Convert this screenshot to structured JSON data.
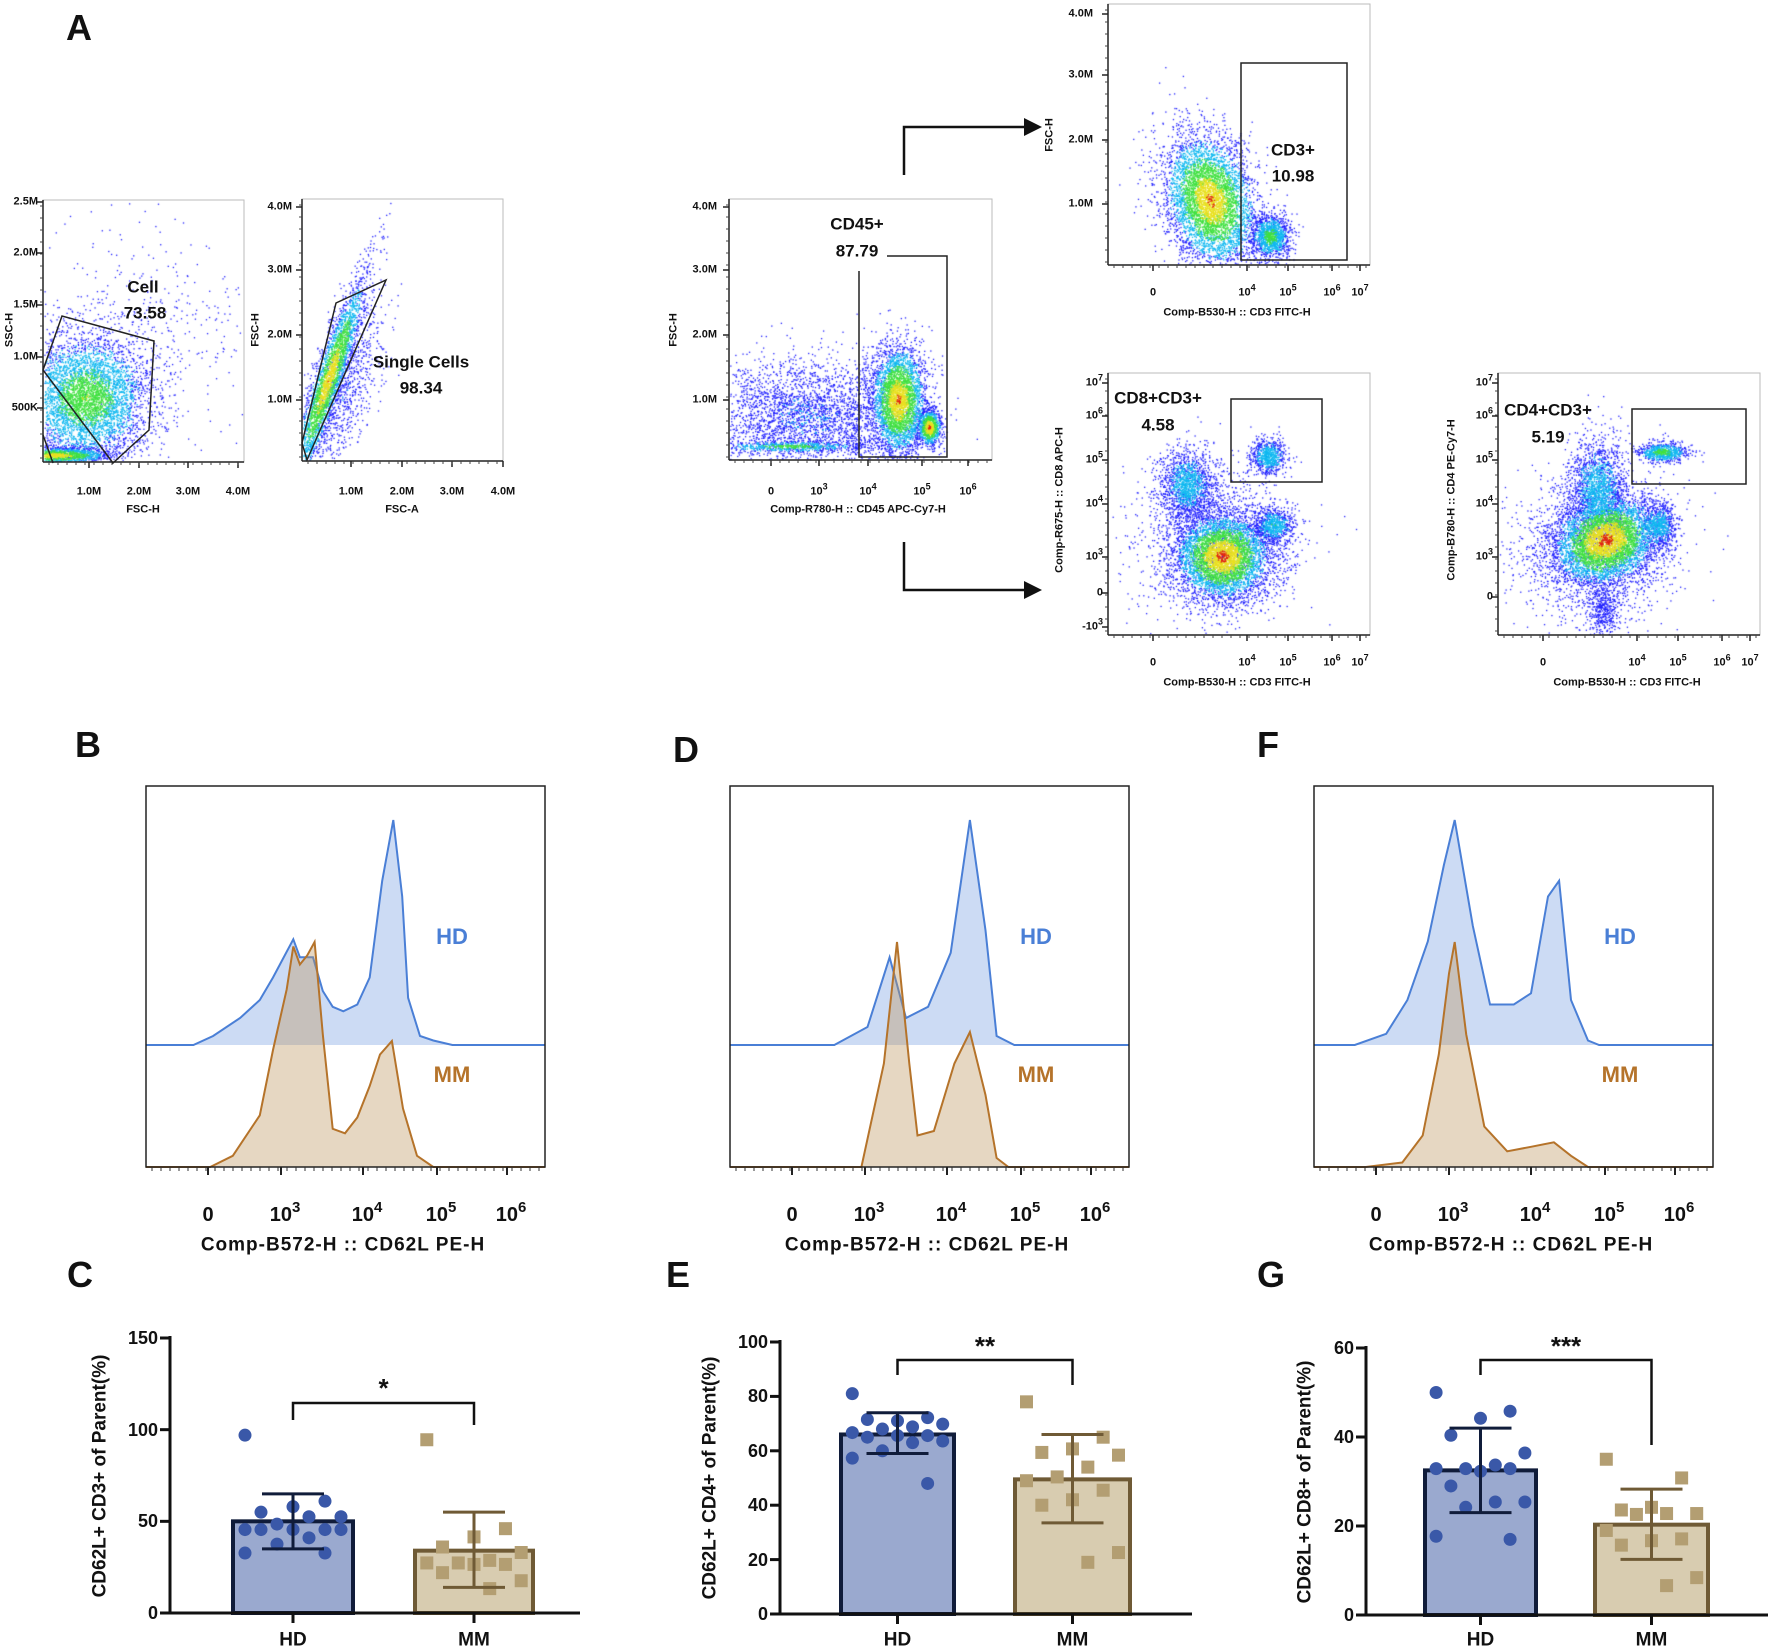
{
  "panel_labels": {
    "A": "A",
    "B": "B",
    "C": "C",
    "D": "D",
    "E": "E",
    "F": "F",
    "G": "G"
  },
  "colors": {
    "hd": "#4a7fd6",
    "mm": "#b5732a",
    "hd_bar": "#9aa9cf",
    "mm_bar": "#d8ccb0",
    "hd_dot": "#3a58a8",
    "mm_dot": "#b39e72"
  },
  "chart_data": [
    {
      "panel": "A",
      "type": "scatter",
      "xlabel": "FSC-H",
      "ylabel": "SSC-H",
      "xticks": [
        {
          "base": "1.0M",
          "exp": ""
        },
        {
          "base": "2.0M",
          "exp": ""
        },
        {
          "base": "3.0M",
          "exp": ""
        },
        {
          "base": "4.0M",
          "exp": ""
        }
      ],
      "yticks": [
        {
          "base": "2.5M",
          "exp": ""
        },
        {
          "base": "2.0M",
          "exp": ""
        },
        {
          "base": "1.5M",
          "exp": ""
        },
        {
          "base": "1.0M",
          "exp": ""
        },
        {
          "base": "500K",
          "exp": ""
        }
      ],
      "gate": {
        "name": "Cell",
        "value": "73.58"
      }
    },
    {
      "panel": "A",
      "type": "scatter",
      "xlabel": "FSC-A",
      "ylabel": "FSC-H",
      "xticks": [
        {
          "base": "1.0M",
          "exp": ""
        },
        {
          "base": "2.0M",
          "exp": ""
        },
        {
          "base": "3.0M",
          "exp": ""
        },
        {
          "base": "4.0M",
          "exp": ""
        }
      ],
      "yticks": [
        {
          "base": "4.0M",
          "exp": ""
        },
        {
          "base": "3.0M",
          "exp": ""
        },
        {
          "base": "2.0M",
          "exp": ""
        },
        {
          "base": "1.0M",
          "exp": ""
        }
      ],
      "gate": {
        "name": "Single Cells",
        "value": "98.34"
      }
    },
    {
      "panel": "A",
      "type": "scatter",
      "xlabel": "Comp-R780-H :: CD45 APC-Cy7-H",
      "ylabel": "FSC-H",
      "xticks": [
        {
          "base": "0",
          "exp": ""
        },
        {
          "base": "10",
          "exp": "3"
        },
        {
          "base": "10",
          "exp": "4"
        },
        {
          "base": "10",
          "exp": "5"
        },
        {
          "base": "10",
          "exp": "6"
        }
      ],
      "yticks": [
        {
          "base": "4.0M",
          "exp": ""
        },
        {
          "base": "3.0M",
          "exp": ""
        },
        {
          "base": "2.0M",
          "exp": ""
        },
        {
          "base": "1.0M",
          "exp": ""
        }
      ],
      "gate": {
        "name": "CD45+",
        "value": "87.79"
      }
    },
    {
      "panel": "A",
      "type": "scatter",
      "xlabel": "Comp-B530-H :: CD3 FITC-H",
      "ylabel": "FSC-H",
      "xticks": [
        {
          "base": "0",
          "exp": ""
        },
        {
          "base": "10",
          "exp": "4"
        },
        {
          "base": "10",
          "exp": "5"
        },
        {
          "base": "10",
          "exp": "6"
        },
        {
          "base": "10",
          "exp": "7"
        }
      ],
      "yticks": [
        {
          "base": "4.0M",
          "exp": ""
        },
        {
          "base": "3.0M",
          "exp": ""
        },
        {
          "base": "2.0M",
          "exp": ""
        },
        {
          "base": "1.0M",
          "exp": ""
        }
      ],
      "gate": {
        "name": "CD3+",
        "value": "10.98"
      }
    },
    {
      "panel": "A",
      "type": "scatter",
      "xlabel": "Comp-B530-H :: CD3 FITC-H",
      "ylabel": "Comp-R675-H :: CD8 APC-H",
      "xticks": [
        {
          "base": "0",
          "exp": ""
        },
        {
          "base": "10",
          "exp": "4"
        },
        {
          "base": "10",
          "exp": "5"
        },
        {
          "base": "10",
          "exp": "6"
        },
        {
          "base": "10",
          "exp": "7"
        }
      ],
      "yticks": [
        {
          "base": "10",
          "exp": "7"
        },
        {
          "base": "10",
          "exp": "6"
        },
        {
          "base": "10",
          "exp": "5"
        },
        {
          "base": "10",
          "exp": "4"
        },
        {
          "base": "10",
          "exp": "3"
        },
        {
          "base": "0",
          "exp": ""
        },
        {
          "base": "-10",
          "exp": "3"
        }
      ],
      "gate": {
        "name": "CD8+CD3+",
        "value": "4.58"
      }
    },
    {
      "panel": "A",
      "type": "scatter",
      "xlabel": "Comp-B530-H :: CD3 FITC-H",
      "ylabel": "Comp-B780-H :: CD4 PE-Cy7-H",
      "xticks": [
        {
          "base": "0",
          "exp": ""
        },
        {
          "base": "10",
          "exp": "4"
        },
        {
          "base": "10",
          "exp": "5"
        },
        {
          "base": "10",
          "exp": "6"
        },
        {
          "base": "10",
          "exp": "7"
        }
      ],
      "yticks": [
        {
          "base": "10",
          "exp": "7"
        },
        {
          "base": "10",
          "exp": "6"
        },
        {
          "base": "10",
          "exp": "5"
        },
        {
          "base": "10",
          "exp": "4"
        },
        {
          "base": "10",
          "exp": "3"
        },
        {
          "base": "0",
          "exp": ""
        }
      ],
      "gate": {
        "name": "CD4+CD3+",
        "value": "5.19"
      }
    },
    {
      "panel": "B",
      "type": "area",
      "xlabel": "Comp-B572-H :: CD62L PE-H",
      "xticks": [
        {
          "base": "0",
          "exp": ""
        },
        {
          "base": "10",
          "exp": "3"
        },
        {
          "base": "10",
          "exp": "4"
        },
        {
          "base": "10",
          "exp": "5"
        },
        {
          "base": "10",
          "exp": "6"
        }
      ],
      "series": [
        {
          "name": "HD",
          "points": [
            [
              1.8,
              0
            ],
            [
              2.07,
              4
            ],
            [
              2.44,
              12
            ],
            [
              2.71,
              20
            ],
            [
              2.89,
              30
            ],
            [
              3.15,
              47
            ],
            [
              3.23,
              39
            ],
            [
              3.39,
              39
            ],
            [
              3.51,
              24
            ],
            [
              3.63,
              17
            ],
            [
              3.76,
              15
            ],
            [
              3.93,
              18
            ],
            [
              4.09,
              30
            ],
            [
              4.26,
              73
            ],
            [
              4.41,
              100
            ],
            [
              4.53,
              66
            ],
            [
              4.61,
              21
            ],
            [
              4.77,
              4
            ],
            [
              4.95,
              2
            ],
            [
              5.22,
              0
            ]
          ]
        },
        {
          "name": "MM",
          "points": [
            [
              2.03,
              0
            ],
            [
              2.34,
              5
            ],
            [
              2.71,
              23
            ],
            [
              2.89,
              52
            ],
            [
              3.07,
              79
            ],
            [
              3.15,
              98
            ],
            [
              3.23,
              90
            ],
            [
              3.32,
              94
            ],
            [
              3.41,
              100
            ],
            [
              3.51,
              59
            ],
            [
              3.63,
              17
            ],
            [
              3.78,
              15
            ],
            [
              3.93,
              22
            ],
            [
              4.09,
              36
            ],
            [
              4.23,
              50
            ],
            [
              4.39,
              56
            ],
            [
              4.54,
              26
            ],
            [
              4.73,
              5
            ],
            [
              4.95,
              0
            ]
          ]
        }
      ]
    },
    {
      "panel": "D",
      "type": "area",
      "xlabel": "Comp-B572-H :: CD62L PE-H",
      "xticks": [
        {
          "base": "0",
          "exp": ""
        },
        {
          "base": "10",
          "exp": "3"
        },
        {
          "base": "10",
          "exp": "4"
        },
        {
          "base": "10",
          "exp": "5"
        },
        {
          "base": "10",
          "exp": "6"
        }
      ],
      "series": [
        {
          "name": "HD",
          "points": [
            [
              2.58,
              0
            ],
            [
              3.03,
              8
            ],
            [
              3.3,
              39
            ],
            [
              3.5,
              12
            ],
            [
              3.77,
              17
            ],
            [
              4.05,
              41
            ],
            [
              4.31,
              100
            ],
            [
              4.52,
              51
            ],
            [
              4.67,
              4
            ],
            [
              4.91,
              0
            ]
          ]
        },
        {
          "name": "MM",
          "points": [
            [
              2.95,
              0
            ],
            [
              3.23,
              46
            ],
            [
              3.39,
              100
            ],
            [
              3.54,
              46
            ],
            [
              3.64,
              14
            ],
            [
              3.84,
              16
            ],
            [
              4.1,
              46
            ],
            [
              4.31,
              60
            ],
            [
              4.52,
              32
            ],
            [
              4.67,
              4
            ],
            [
              4.83,
              0
            ]
          ]
        }
      ]
    },
    {
      "panel": "F",
      "type": "area",
      "xlabel": "Comp-B572-H :: CD62L PE-H",
      "xticks": [
        {
          "base": "0",
          "exp": ""
        },
        {
          "base": "10",
          "exp": "3"
        },
        {
          "base": "10",
          "exp": "4"
        },
        {
          "base": "10",
          "exp": "5"
        },
        {
          "base": "10",
          "exp": "6"
        }
      ],
      "series": [
        {
          "name": "HD",
          "points": [
            [
              1.71,
              0
            ],
            [
              2.14,
              5
            ],
            [
              2.43,
              20
            ],
            [
              2.71,
              46
            ],
            [
              2.93,
              80
            ],
            [
              3.07,
              100
            ],
            [
              3.29,
              53
            ],
            [
              3.5,
              18
            ],
            [
              3.79,
              18
            ],
            [
              4.0,
              23
            ],
            [
              4.23,
              66
            ],
            [
              4.38,
              73
            ],
            [
              4.54,
              20
            ],
            [
              4.77,
              2
            ],
            [
              4.92,
              0
            ]
          ]
        },
        {
          "name": "MM",
          "points": [
            [
              1.86,
              0
            ],
            [
              2.36,
              2
            ],
            [
              2.64,
              14
            ],
            [
              2.86,
              50
            ],
            [
              3.0,
              86
            ],
            [
              3.07,
              100
            ],
            [
              3.21,
              59
            ],
            [
              3.43,
              18
            ],
            [
              3.71,
              7
            ],
            [
              4.0,
              9
            ],
            [
              4.31,
              11
            ],
            [
              4.54,
              5
            ],
            [
              4.77,
              0
            ]
          ]
        }
      ]
    },
    {
      "panel": "C",
      "type": "bar",
      "ylabel": "CD62L+ CD3+ of Parent(%)",
      "categories": [
        "HD",
        "MM"
      ],
      "ylim": [
        0,
        150
      ],
      "yticks": [
        "150",
        "100",
        "50",
        "0"
      ],
      "significance": "*",
      "values": [
        50,
        34
      ],
      "error": [
        [
          35,
          65
        ],
        [
          14,
          55
        ]
      ],
      "points": [
        [
          97,
          61,
          58,
          55,
          52.5,
          52.5,
          48.5,
          45.5,
          45.5,
          45.5,
          45.5,
          45.5,
          41,
          37.6,
          32.7,
          32.7
        ],
        [
          94.5,
          46,
          41.5,
          36,
          33,
          28.7,
          27.3,
          27.3,
          26.5,
          26.5,
          22,
          17.6,
          13.3
        ]
      ]
    },
    {
      "panel": "E",
      "type": "bar",
      "ylabel": "CD62L+ CD4+ of Parent(%)",
      "categories": [
        "HD",
        "MM"
      ],
      "ylim": [
        0,
        100
      ],
      "yticks": [
        "100",
        "80",
        "60",
        "40",
        "20",
        "0"
      ],
      "significance": "**",
      "values": [
        66,
        49.5
      ],
      "error": [
        [
          59,
          74
        ],
        [
          33.5,
          66
        ]
      ],
      "points": [
        [
          81,
          72.2,
          71,
          71.5,
          69.8,
          68.8,
          68,
          66.7,
          65.6,
          65.6,
          65,
          63.6,
          63,
          60,
          57.3,
          48
        ],
        [
          78,
          65,
          60.7,
          59.4,
          58.4,
          54,
          50.4,
          49,
          45.5,
          42,
          40,
          22.6,
          19
        ]
      ]
    },
    {
      "panel": "G",
      "type": "bar",
      "ylabel": "CD62L+ CD8+ of Parent(%)",
      "categories": [
        "HD",
        "MM"
      ],
      "ylim": [
        0,
        60
      ],
      "yticks": [
        "60",
        "40",
        "20",
        "0"
      ],
      "significance": "***",
      "values": [
        32.5,
        20.3
      ],
      "error": [
        [
          23,
          42
        ],
        [
          12.5,
          28.3
        ]
      ],
      "points": [
        [
          50,
          45.8,
          44.2,
          40.4,
          36.4,
          33.7,
          32.9,
          32.9,
          32.9,
          32.3,
          29,
          25.4,
          25.4,
          24.2,
          17.7,
          17
        ],
        [
          35,
          30.8,
          24.2,
          23.6,
          22.8,
          22.8,
          22.6,
          19,
          17.1,
          16.7,
          15.7,
          8.4,
          6.6
        ]
      ]
    }
  ]
}
